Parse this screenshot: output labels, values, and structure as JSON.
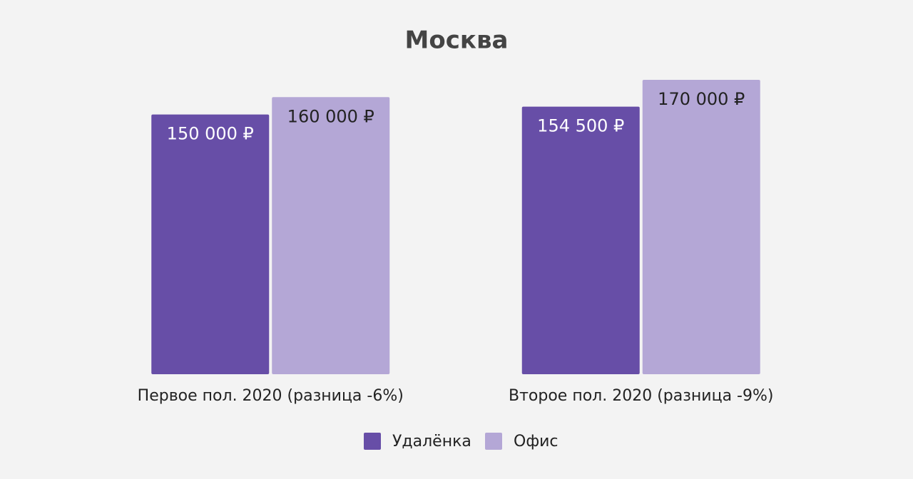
{
  "chart_data": {
    "type": "bar",
    "title": "Москва",
    "categories": [
      "Первое пол. 2020 (разница -6%)",
      "Второе пол. 2020 (разница -9%)"
    ],
    "series": [
      {
        "name": "Удалёнка",
        "color": "#674ea7",
        "values": [
          150000,
          154500
        ],
        "value_labels": [
          "150 000 ₽",
          "154 500 ₽"
        ]
      },
      {
        "name": "Офис",
        "color": "#b4a7d6",
        "values": [
          160000,
          170000
        ],
        "value_labels": [
          "160 000 ₽",
          "170 000 ₽"
        ]
      }
    ],
    "ylim": [
      0,
      170000
    ],
    "grid": false,
    "legend": "bottom"
  }
}
